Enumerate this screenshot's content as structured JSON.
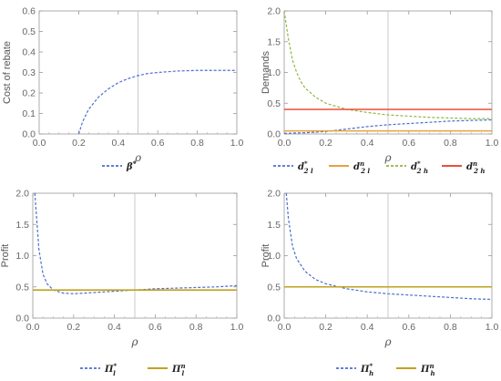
{
  "chart_data": [
    {
      "type": "line",
      "xlabel": "ρ",
      "ylabel": "Cost of rebate",
      "xlim": [
        0.0,
        1.0
      ],
      "ylim": [
        0.0,
        0.6
      ],
      "xticks": [
        "0.0",
        "0.2",
        "0.4",
        "0.6",
        "0.8",
        "1.0"
      ],
      "yticks": [
        "0.0",
        "0.1",
        "0.2",
        "0.3",
        "0.4",
        "0.5",
        "0.6"
      ],
      "vline": 0.5,
      "legend_position": "bottom",
      "series": [
        {
          "name": "β*",
          "dash": true,
          "color": "#4a6fd0",
          "x": [
            0.2,
            0.22,
            0.25,
            0.3,
            0.35,
            0.4,
            0.45,
            0.5,
            0.55,
            0.6,
            0.7,
            0.8,
            0.9,
            1.0
          ],
          "y": [
            0.0,
            0.06,
            0.12,
            0.18,
            0.22,
            0.25,
            0.27,
            0.285,
            0.295,
            0.3,
            0.307,
            0.31,
            0.31,
            0.31
          ]
        }
      ],
      "legend": [
        {
          "sym": "β",
          "sup": "*",
          "sub": ""
        }
      ]
    },
    {
      "type": "line",
      "xlabel": "ρ",
      "ylabel": "Demands",
      "xlim": [
        0.0,
        1.0
      ],
      "ylim": [
        0.0,
        2.0
      ],
      "xticks": [
        "0.0",
        "0.2",
        "0.4",
        "0.6",
        "0.8",
        "1.0"
      ],
      "yticks": [
        "0.0",
        "0.5",
        "1.0",
        "1.5",
        "2.0"
      ],
      "vline": 0.5,
      "legend_position": "bottom",
      "series": [
        {
          "name": "d*2l",
          "dash": true,
          "color": "#4a6fd0",
          "x": [
            0.0,
            0.1,
            0.2,
            0.3,
            0.4,
            0.5,
            0.6,
            0.7,
            0.8,
            0.9,
            1.0
          ],
          "y": [
            0.01,
            0.02,
            0.04,
            0.08,
            0.12,
            0.15,
            0.17,
            0.19,
            0.21,
            0.22,
            0.23
          ]
        },
        {
          "name": "dn2l",
          "dash": false,
          "color": "#e8a23c",
          "x": [
            0.0,
            1.0
          ],
          "y": [
            0.05,
            0.05
          ]
        },
        {
          "name": "d*2h",
          "dash": true,
          "color": "#8fb83f",
          "x": [
            0.0,
            0.02,
            0.04,
            0.06,
            0.08,
            0.1,
            0.15,
            0.2,
            0.3,
            0.4,
            0.5,
            0.6,
            0.7,
            0.8,
            0.9,
            1.0
          ],
          "y": [
            2.0,
            1.55,
            1.2,
            1.0,
            0.85,
            0.75,
            0.6,
            0.5,
            0.4,
            0.35,
            0.31,
            0.29,
            0.27,
            0.26,
            0.25,
            0.25
          ]
        },
        {
          "name": "dn2h",
          "dash": false,
          "color": "#e8503a",
          "x": [
            0.0,
            1.0
          ],
          "y": [
            0.4,
            0.4
          ]
        }
      ],
      "legend": [
        {
          "sym": "d",
          "sup": "*",
          "sub": "2 l"
        },
        {
          "sym": "d",
          "sup": "n",
          "sub": "2 l"
        },
        {
          "sym": "d",
          "sup": "*",
          "sub": "2 h"
        },
        {
          "sym": "d",
          "sup": "n",
          "sub": "2 h"
        }
      ]
    },
    {
      "type": "line",
      "xlabel": "ρ",
      "ylabel": "Profit",
      "xlim": [
        0.0,
        1.0
      ],
      "ylim": [
        0.0,
        2.0
      ],
      "xticks": [
        "0.0",
        "0.2",
        "0.4",
        "0.6",
        "0.8",
        "1.0"
      ],
      "yticks": [
        "0.0",
        "0.5",
        "1.0",
        "1.5",
        "2.0"
      ],
      "vline": 0.5,
      "legend_position": "bottom",
      "series": [
        {
          "name": "Π*l",
          "dash": true,
          "color": "#4a6fd0",
          "x": [
            0.01,
            0.03,
            0.05,
            0.07,
            0.1,
            0.15,
            0.2,
            0.3,
            0.4,
            0.5,
            0.6,
            0.7,
            0.8,
            0.9,
            1.0
          ],
          "y": [
            2.0,
            1.1,
            0.7,
            0.55,
            0.45,
            0.4,
            0.39,
            0.41,
            0.43,
            0.45,
            0.47,
            0.48,
            0.49,
            0.5,
            0.52
          ]
        },
        {
          "name": "Πnl",
          "dash": false,
          "color": "#c2a21f",
          "x": [
            0.0,
            1.0
          ],
          "y": [
            0.45,
            0.45
          ]
        }
      ],
      "legend": [
        {
          "sym": "Π",
          "sup": "*",
          "sub": "l"
        },
        {
          "sym": "Π",
          "sup": "n",
          "sub": "l"
        }
      ]
    },
    {
      "type": "line",
      "xlabel": "ρ",
      "ylabel": "Profit",
      "xlim": [
        0.0,
        1.0
      ],
      "ylim": [
        0.0,
        2.0
      ],
      "xticks": [
        "0.0",
        "0.2",
        "0.4",
        "0.6",
        "0.8",
        "1.0"
      ],
      "yticks": [
        "0.0",
        "0.5",
        "1.0",
        "1.5",
        "2.0"
      ],
      "vline": 0.5,
      "legend_position": "bottom",
      "series": [
        {
          "name": "Π*h",
          "dash": true,
          "color": "#4a6fd0",
          "x": [
            0.01,
            0.02,
            0.04,
            0.06,
            0.08,
            0.1,
            0.15,
            0.2,
            0.3,
            0.4,
            0.5,
            0.6,
            0.7,
            0.8,
            0.9,
            1.0
          ],
          "y": [
            2.0,
            1.6,
            1.15,
            0.95,
            0.85,
            0.75,
            0.62,
            0.55,
            0.47,
            0.42,
            0.39,
            0.37,
            0.35,
            0.33,
            0.31,
            0.3
          ]
        },
        {
          "name": "Πnh",
          "dash": false,
          "color": "#c2a21f",
          "x": [
            0.0,
            1.0
          ],
          "y": [
            0.5,
            0.5
          ]
        }
      ],
      "legend": [
        {
          "sym": "Π",
          "sup": "*",
          "sub": "h"
        },
        {
          "sym": "Π",
          "sup": "n",
          "sub": "h"
        }
      ]
    }
  ]
}
